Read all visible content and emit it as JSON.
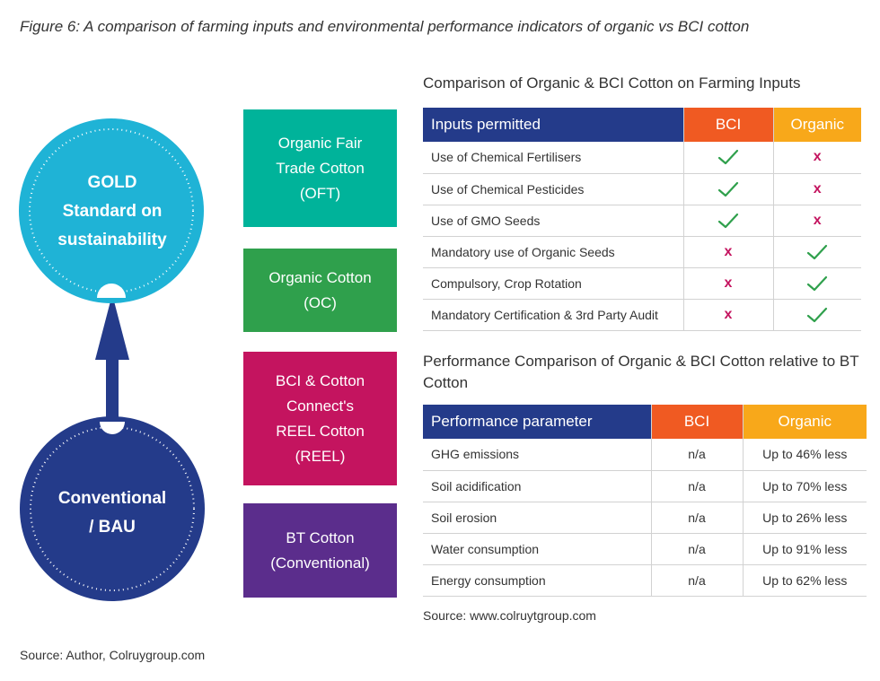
{
  "figure_title": "Figure 6: A comparison of farming inputs and environmental performance indicators of organic vs BCI cotton",
  "diagram": {
    "gold_circle_text": "GOLD\nStandard on\nsustainability",
    "conventional_circle_text": "Conventional\n/ BAU",
    "categories": [
      {
        "label": "Organic Fair\nTrade Cotton\n(OFT)",
        "color": "#00b39a"
      },
      {
        "label": "Organic Cotton\n(OC)",
        "color": "#2fa04c"
      },
      {
        "label": "BCI & Cotton\nConnect's\nREEL Cotton\n(REEL)",
        "color": "#c4145f"
      },
      {
        "label": "BT Cotton\n(Conventional)",
        "color": "#5b2d8c"
      }
    ],
    "colors": {
      "gold_circle": "#1fb3d6",
      "conventional_circle": "#243b8a",
      "arrow": "#243b8a"
    }
  },
  "inputs_table": {
    "heading": "Comparison of Organic & BCI Cotton on Farming Inputs",
    "columns": [
      "Inputs permitted",
      "BCI",
      "Organic"
    ],
    "rows": [
      {
        "label": "Use of Chemical Fertilisers",
        "bci": "check",
        "organic": "x"
      },
      {
        "label": "Use of Chemical Pesticides",
        "bci": "check",
        "organic": "x"
      },
      {
        "label": "Use of GMO Seeds",
        "bci": "check",
        "organic": "x"
      },
      {
        "label": "Mandatory use of Organic Seeds",
        "bci": "x",
        "organic": "check"
      },
      {
        "label": "Compulsory, Crop Rotation",
        "bci": "x",
        "organic": "check"
      },
      {
        "label": "Mandatory Certification & 3rd Party Audit",
        "bci": "x",
        "organic": "check"
      }
    ]
  },
  "performance_table": {
    "heading": "Performance Comparison of Organic & BCI Cotton relative to BT Cotton",
    "columns": [
      "Performance parameter",
      "BCI",
      "Organic"
    ],
    "rows": [
      {
        "label": "GHG emissions",
        "bci": "n/a",
        "organic": "Up to 46% less"
      },
      {
        "label": "Soil acidification",
        "bci": "n/a",
        "organic": "Up to 70% less"
      },
      {
        "label": "Soil erosion",
        "bci": "n/a",
        "organic": "Up to 26% less"
      },
      {
        "label": "Water consumption",
        "bci": "n/a",
        "organic": "Up to 91% less"
      },
      {
        "label": "Energy consumption",
        "bci": "n/a",
        "organic": "Up to 62% less"
      }
    ]
  },
  "table_source": "Source: www.colruytgroup.com",
  "figure_source": "Source: Author, Colruygroup.com",
  "colors": {
    "header_dark": "#243b8a",
    "header_bci": "#f05a22",
    "header_organic": "#f8a81a",
    "check": "#2fa04c",
    "cross": "#c4145f"
  }
}
